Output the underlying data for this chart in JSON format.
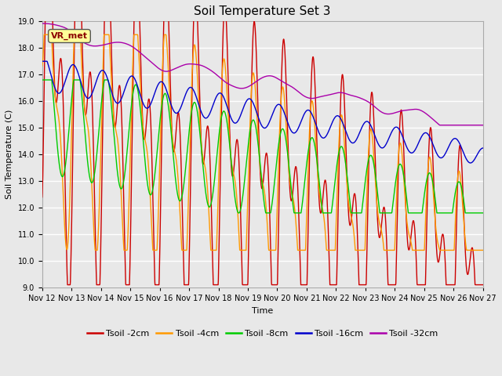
{
  "title": "Soil Temperature Set 3",
  "xlabel": "Time",
  "ylabel": "Soil Temperature (C)",
  "ylim": [
    9.0,
    19.0
  ],
  "yticks": [
    9.0,
    10.0,
    11.0,
    12.0,
    13.0,
    14.0,
    15.0,
    16.0,
    17.0,
    18.0,
    19.0
  ],
  "x_tick_days": [
    12,
    13,
    14,
    15,
    16,
    17,
    18,
    19,
    20,
    21,
    22,
    23,
    24,
    25,
    26,
    27
  ],
  "x_tick_labels": [
    "Nov 12",
    "Nov 13",
    "Nov 14",
    "Nov 15",
    "Nov 16",
    "Nov 17",
    "Nov 18",
    "Nov 19",
    "Nov 20",
    "Nov 21",
    "Nov 22",
    "Nov 23",
    "Nov 24",
    "Nov 25",
    "Nov 26",
    "Nov 27"
  ],
  "legend_labels": [
    "Tsoil -2cm",
    "Tsoil -4cm",
    "Tsoil -8cm",
    "Tsoil -16cm",
    "Tsoil -32cm"
  ],
  "line_colors": [
    "#cc0000",
    "#ff9900",
    "#00cc00",
    "#0000cc",
    "#aa00aa"
  ],
  "bg_color": "#e8e8e8",
  "grid_color": "#ffffff",
  "annotation_text": "VR_met",
  "annotation_bbox_facecolor": "#ffff99",
  "annotation_bbox_edgecolor": "#555555",
  "title_fontsize": 11,
  "label_fontsize": 8,
  "tick_fontsize": 7,
  "legend_fontsize": 8
}
